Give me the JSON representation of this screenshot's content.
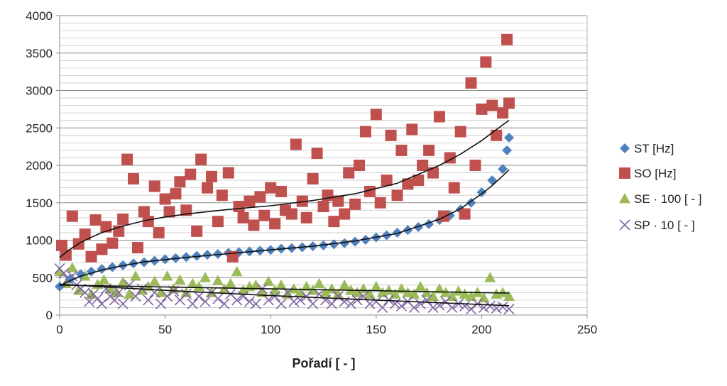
{
  "chart_data": {
    "type": "scatter",
    "title": "",
    "xlabel": "Pořadí [ - ]",
    "ylabel": "",
    "xlim": [
      0,
      250
    ],
    "ylim": [
      0,
      4000
    ],
    "xticks": [
      "0",
      "50",
      "100",
      "150",
      "200",
      "250"
    ],
    "yticks": [
      "0",
      "500",
      "1000",
      "1500",
      "2000",
      "2500",
      "3000",
      "3500",
      "4000"
    ],
    "grid": "horizontal",
    "legend_position": "right",
    "series": [
      {
        "name": "ST [Hz]",
        "marker": "diamond",
        "color": "#4f81bd",
        "x": [
          0,
          5,
          10,
          15,
          20,
          25,
          30,
          35,
          40,
          45,
          50,
          55,
          60,
          65,
          70,
          75,
          80,
          85,
          90,
          95,
          100,
          105,
          110,
          115,
          120,
          125,
          130,
          135,
          140,
          145,
          150,
          155,
          160,
          165,
          170,
          175,
          180,
          185,
          190,
          195,
          200,
          205,
          210,
          212,
          213
        ],
        "y": [
          380,
          480,
          545,
          580,
          615,
          640,
          665,
          690,
          705,
          725,
          745,
          760,
          775,
          790,
          805,
          815,
          830,
          840,
          850,
          860,
          870,
          885,
          895,
          905,
          920,
          930,
          945,
          960,
          980,
          1005,
          1035,
          1065,
          1100,
          1135,
          1175,
          1215,
          1270,
          1330,
          1410,
          1500,
          1640,
          1800,
          1950,
          2200,
          2370
        ]
      },
      {
        "name": "SO [Hz]",
        "marker": "square",
        "color": "#c0504d",
        "x": [
          1,
          3,
          6,
          9,
          12,
          15,
          17,
          20,
          22,
          25,
          28,
          30,
          32,
          35,
          37,
          40,
          42,
          45,
          47,
          50,
          52,
          55,
          57,
          60,
          62,
          65,
          67,
          70,
          72,
          75,
          77,
          80,
          82,
          85,
          87,
          90,
          92,
          95,
          97,
          100,
          102,
          105,
          107,
          110,
          112,
          115,
          117,
          120,
          122,
          125,
          127,
          130,
          132,
          135,
          137,
          140,
          142,
          145,
          147,
          150,
          152,
          155,
          157,
          160,
          162,
          165,
          167,
          170,
          172,
          175,
          177,
          180,
          182,
          185,
          187,
          190,
          192,
          195,
          197,
          200,
          202,
          205,
          207,
          210,
          212,
          213
        ],
        "y": [
          930,
          800,
          1320,
          950,
          1080,
          780,
          1270,
          880,
          1180,
          960,
          1120,
          1280,
          2080,
          1820,
          900,
          1380,
          1250,
          1720,
          1100,
          1550,
          1380,
          1620,
          1780,
          1400,
          1880,
          1120,
          2080,
          1700,
          1850,
          1250,
          1600,
          1900,
          780,
          1450,
          1300,
          1520,
          1200,
          1580,
          1330,
          1700,
          1220,
          1650,
          1400,
          1350,
          2280,
          1520,
          1300,
          1820,
          2160,
          1450,
          1600,
          1250,
          1520,
          1350,
          1900,
          1480,
          2000,
          2450,
          1650,
          2680,
          1500,
          1800,
          2400,
          1600,
          2200,
          1750,
          2480,
          1800,
          2000,
          2200,
          1900,
          2650,
          1320,
          2100,
          1700,
          2450,
          1350,
          3100,
          2000,
          2750,
          3380,
          2800,
          2400,
          2700,
          3680,
          2830
        ]
      },
      {
        "name": "SE · 100 [ - ]",
        "marker": "triangle",
        "color": "#9bbb59",
        "x": [
          0,
          3,
          6,
          9,
          12,
          15,
          18,
          21,
          24,
          27,
          30,
          33,
          36,
          39,
          42,
          45,
          48,
          51,
          54,
          57,
          60,
          63,
          66,
          69,
          72,
          75,
          78,
          81,
          84,
          87,
          90,
          93,
          96,
          99,
          102,
          105,
          108,
          111,
          114,
          117,
          120,
          123,
          126,
          129,
          132,
          135,
          138,
          141,
          144,
          147,
          150,
          153,
          156,
          159,
          162,
          165,
          168,
          171,
          174,
          177,
          180,
          183,
          186,
          189,
          192,
          195,
          198,
          201,
          204,
          207,
          210,
          213
        ],
        "y": [
          580,
          420,
          630,
          330,
          520,
          280,
          410,
          470,
          350,
          300,
          440,
          280,
          520,
          330,
          380,
          450,
          300,
          520,
          350,
          470,
          300,
          420,
          380,
          500,
          300,
          460,
          350,
          420,
          580,
          330,
          380,
          400,
          300,
          450,
          330,
          400,
          280,
          350,
          300,
          380,
          330,
          420,
          300,
          350,
          280,
          400,
          330,
          300,
          350,
          280,
          380,
          300,
          330,
          280,
          350,
          300,
          280,
          380,
          300,
          250,
          350,
          300,
          250,
          320,
          280,
          250,
          300,
          230,
          500,
          280,
          300,
          250
        ]
      },
      {
        "name": "SP · 10 [ - ]",
        "marker": "cross",
        "color": "#8064a2",
        "x": [
          0,
          2,
          4,
          6,
          8,
          10,
          12,
          14,
          16,
          18,
          20,
          22,
          24,
          26,
          28,
          30,
          33,
          36,
          39,
          42,
          45,
          48,
          51,
          54,
          57,
          60,
          63,
          66,
          69,
          72,
          75,
          78,
          81,
          84,
          87,
          90,
          93,
          96,
          99,
          102,
          105,
          108,
          111,
          114,
          117,
          120,
          123,
          126,
          129,
          132,
          135,
          138,
          141,
          144,
          147,
          150,
          153,
          156,
          159,
          162,
          165,
          168,
          171,
          174,
          177,
          180,
          183,
          186,
          189,
          192,
          195,
          198,
          201,
          204,
          207,
          210,
          213
        ],
        "y": [
          620,
          560,
          480,
          520,
          400,
          350,
          300,
          180,
          280,
          220,
          150,
          350,
          250,
          200,
          300,
          150,
          400,
          250,
          350,
          200,
          300,
          150,
          250,
          320,
          200,
          280,
          150,
          250,
          180,
          300,
          220,
          150,
          280,
          200,
          250,
          180,
          150,
          350,
          200,
          250,
          150,
          300,
          180,
          200,
          250,
          150,
          280,
          200,
          150,
          250,
          180,
          150,
          200,
          250,
          150,
          180,
          100,
          200,
          150,
          120,
          180,
          100,
          150,
          200,
          100,
          130,
          180,
          100,
          150,
          120,
          80,
          150,
          100,
          120,
          90,
          110,
          80
        ]
      }
    ],
    "trendlines": [
      {
        "series": "ST [Hz]",
        "x": [
          0,
          5,
          10,
          20,
          30,
          40,
          60,
          80,
          100,
          120,
          140,
          160,
          180,
          190,
          200,
          205,
          210,
          213
        ],
        "y": [
          390,
          460,
          520,
          600,
          660,
          710,
          770,
          820,
          870,
          920,
          990,
          1090,
          1280,
          1420,
          1620,
          1730,
          1860,
          1940
        ]
      },
      {
        "series": "SO [Hz]",
        "x": [
          0,
          5,
          10,
          15,
          20,
          30,
          40,
          50,
          60,
          80,
          100,
          120,
          140,
          160,
          180,
          190,
          200,
          210,
          213
        ],
        "y": [
          770,
          880,
          970,
          1040,
          1100,
          1190,
          1260,
          1310,
          1350,
          1410,
          1460,
          1530,
          1620,
          1760,
          2000,
          2150,
          2330,
          2540,
          2600
        ]
      },
      {
        "series": "SE · 100 [ - ]",
        "x": [
          0,
          50,
          100,
          150,
          200,
          213
        ],
        "y": [
          400,
          375,
          350,
          325,
          300,
          295
        ]
      },
      {
        "series": "SP · 10 [ - ]",
        "x": [
          0,
          50,
          100,
          150,
          200,
          213
        ],
        "y": [
          410,
          330,
          260,
          200,
          140,
          125
        ]
      }
    ]
  }
}
